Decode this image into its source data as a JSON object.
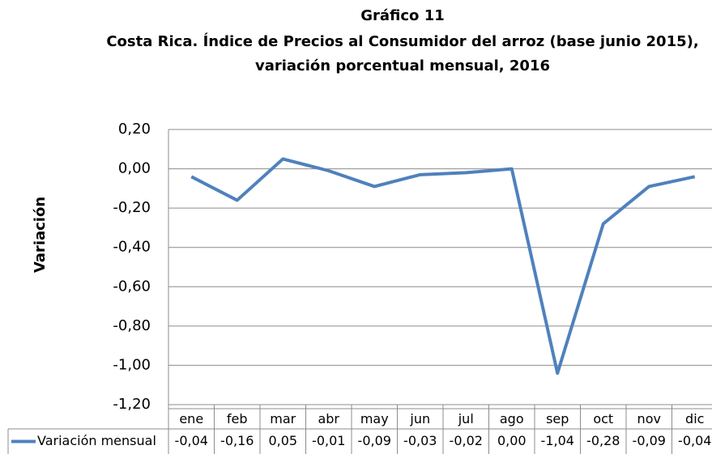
{
  "chart_data": {
    "type": "line",
    "title": "Gráfico 11",
    "subtitle": [
      "Costa Rica.  Índice de Precios al Consumidor del arroz (base junio 2015),",
      "variación porcentual mensual, 2016"
    ],
    "y_label": "Variación",
    "categories": [
      "ene",
      "feb",
      "mar",
      "abr",
      "may",
      "jun",
      "jul",
      "ago",
      "sep",
      "oct",
      "nov",
      "dic"
    ],
    "series": [
      {
        "name": "Variación mensual",
        "color": "#4f81bd",
        "values": [
          -0.04,
          -0.16,
          0.05,
          -0.01,
          -0.09,
          -0.03,
          -0.02,
          0.0,
          -1.04,
          -0.28,
          -0.09,
          -0.04
        ],
        "value_labels": [
          "-0,04",
          "-0,16",
          "0,05",
          "-0,01",
          "-0,09",
          "-0,03",
          "-0,02",
          "0,00",
          "-1,04",
          "-0,28",
          "-0,09",
          "-0,04"
        ]
      }
    ],
    "ylim": [
      -1.2,
      0.2
    ],
    "yticks": [
      {
        "value": 0.2,
        "label": "0,20"
      },
      {
        "value": 0,
        "label": "0,00"
      },
      {
        "value": -0.2,
        "label": "-0,20"
      },
      {
        "value": -0.4,
        "label": "-0,40"
      },
      {
        "value": -0.6,
        "label": "-0,60"
      },
      {
        "value": -0.8,
        "label": "-0,80"
      },
      {
        "value": -1.0,
        "label": "-1,00"
      },
      {
        "value": -1.2,
        "label": "-1,20"
      }
    ],
    "grid": true,
    "data_table": true
  }
}
